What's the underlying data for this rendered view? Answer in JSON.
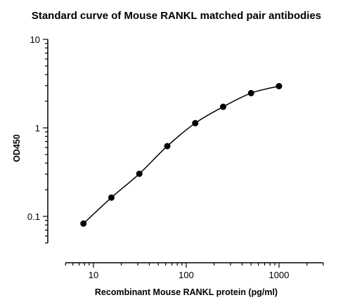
{
  "chart_data": {
    "type": "scatter",
    "title": "Standard curve of Mouse RANKL matched pair antibodies",
    "xlabel": "Recombinant Mouse RANKL protein (pg/ml)",
    "ylabel": "OD450",
    "xscale": "log",
    "yscale": "log",
    "xlim": [
      5,
      3000
    ],
    "ylim": [
      0.05,
      10
    ],
    "x_ticks": [
      {
        "value": 10,
        "label": "10"
      },
      {
        "value": 100,
        "label": "100"
      },
      {
        "value": 1000,
        "label": "1000"
      }
    ],
    "y_ticks": [
      {
        "value": 0.1,
        "label": "0.1"
      },
      {
        "value": 1,
        "label": "1"
      },
      {
        "value": 10,
        "label": "10"
      }
    ],
    "grid": false,
    "legend": "none",
    "point_color": "#000000",
    "fit_curve": true,
    "series": [
      {
        "x": [
          7.8,
          15.6,
          31.25,
          62.5,
          125,
          250,
          500,
          1000
        ],
        "y": [
          0.083,
          0.163,
          0.303,
          0.622,
          1.13,
          1.73,
          2.47,
          2.96
        ]
      }
    ]
  }
}
